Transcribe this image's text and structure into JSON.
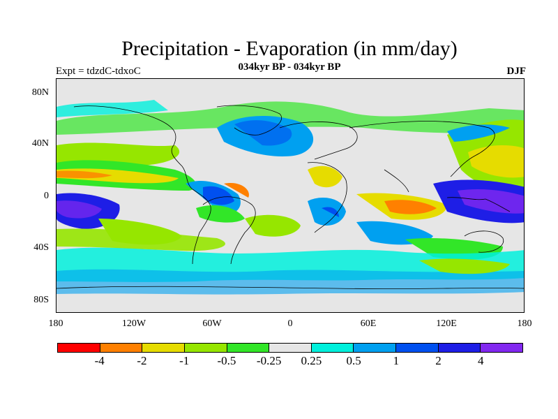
{
  "title": "Precipitation - Evaporation (in mm/day)",
  "subtitle": "034kyr BP - 034kyr BP",
  "expt_label": "Expt = tdzdC-tdxoC",
  "season": "DJF",
  "lat_ticks": [
    "80N",
    "40N",
    "0",
    "40S",
    "80S"
  ],
  "lon_ticks": [
    "180",
    "120W",
    "60W",
    "0",
    "60E",
    "120E",
    "180"
  ],
  "colorbar": {
    "colors": [
      "#ff0000",
      "#ff8000",
      "#e6dc00",
      "#96e600",
      "#32e628",
      "#e6e6e6",
      "#00f0dc",
      "#00a0f0",
      "#0050f0",
      "#1e1ee6",
      "#8228f0"
    ],
    "labels": [
      "-4",
      "-2",
      "-1",
      "-0.5",
      "-0.25",
      "0.25",
      "0.5",
      "1",
      "2",
      "4"
    ]
  }
}
